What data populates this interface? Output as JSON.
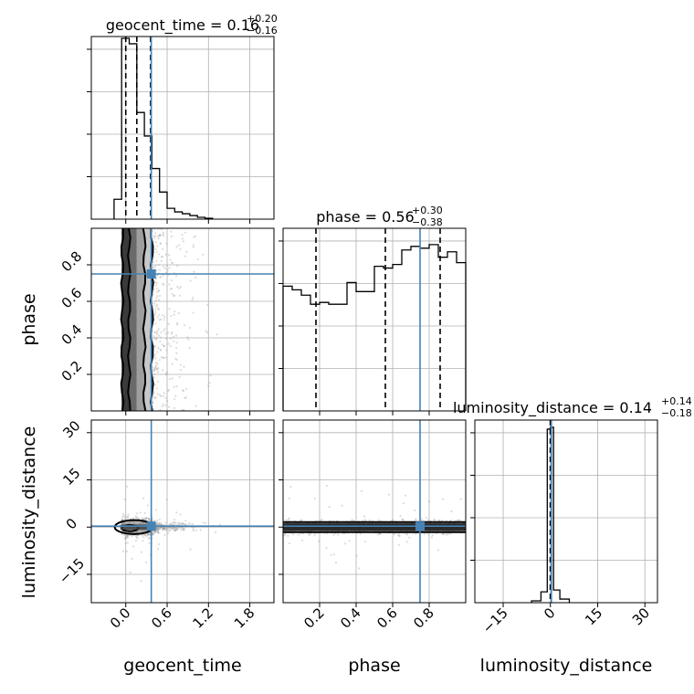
{
  "chart_data": {
    "type": "corner",
    "parameters": [
      "geocent_time",
      "phase",
      "luminosity_distance"
    ],
    "axis_labels": [
      "geocent_time",
      "phase",
      "luminosity_distance"
    ],
    "titles": [
      {
        "param": "geocent_time",
        "median": "0.16",
        "plus": "+0.20",
        "minus": "−0.16"
      },
      {
        "param": "phase",
        "median": "0.56",
        "plus": "+0.30",
        "minus": "−0.38"
      },
      {
        "param": "luminosity_distance",
        "median": "0.14",
        "plus": "+0.14",
        "minus": "−0.18"
      }
    ],
    "ranges": {
      "geocent_time": [
        -0.5,
        2.15
      ],
      "phase": [
        0.0,
        1.0
      ],
      "luminosity_distance": [
        -24,
        34
      ]
    },
    "ticks": {
      "geocent_time": {
        "values": [
          0.0,
          0.6,
          1.2,
          1.8
        ],
        "labels": [
          "0.0",
          "0.6",
          "1.2",
          "1.8"
        ]
      },
      "phase": {
        "values": [
          0.2,
          0.4,
          0.6,
          0.8
        ],
        "labels": [
          "0.2",
          "0.4",
          "0.6",
          "0.8"
        ]
      },
      "luminosity_distance": {
        "values": [
          -15,
          0,
          15,
          30
        ],
        "labels": [
          "−15",
          "0",
          "15",
          "30"
        ]
      }
    },
    "truths": {
      "geocent_time": 0.37,
      "phase": 0.75,
      "luminosity_distance": 0.3
    },
    "quantiles": {
      "geocent_time": [
        0.0,
        0.16,
        0.36
      ],
      "phase": [
        0.18,
        0.56,
        0.86
      ],
      "luminosity_distance": [
        -0.04,
        0.14,
        0.28
      ]
    },
    "hist1d": {
      "geocent_time": {
        "edges": [
          -0.17,
          -0.06,
          0.05,
          0.16,
          0.27,
          0.38,
          0.49,
          0.6,
          0.71,
          0.82,
          0.93,
          1.04,
          1.15,
          1.26
        ],
        "counts": [
          0.11,
          1.0,
          0.97,
          0.59,
          0.46,
          0.28,
          0.15,
          0.06,
          0.04,
          0.03,
          0.02,
          0.01,
          0.005
        ]
      },
      "phase": {
        "edges": [
          0.0,
          0.05,
          0.1,
          0.15,
          0.2,
          0.25,
          0.3,
          0.35,
          0.4,
          0.45,
          0.5,
          0.55,
          0.6,
          0.65,
          0.7,
          0.75,
          0.8,
          0.85,
          0.9,
          0.95,
          1.0
        ],
        "counts": [
          0.69,
          0.67,
          0.64,
          0.59,
          0.6,
          0.59,
          0.59,
          0.71,
          0.66,
          0.66,
          0.8,
          0.79,
          0.81,
          0.89,
          0.91,
          0.9,
          0.92,
          0.85,
          0.88,
          0.82
        ]
      },
      "luminosity_distance": {
        "edges": [
          -6,
          -3,
          -1,
          0,
          1,
          3,
          6
        ],
        "counts": [
          0.01,
          0.06,
          0.96,
          0.97,
          0.07,
          0.02
        ]
      }
    },
    "grid": true
  }
}
